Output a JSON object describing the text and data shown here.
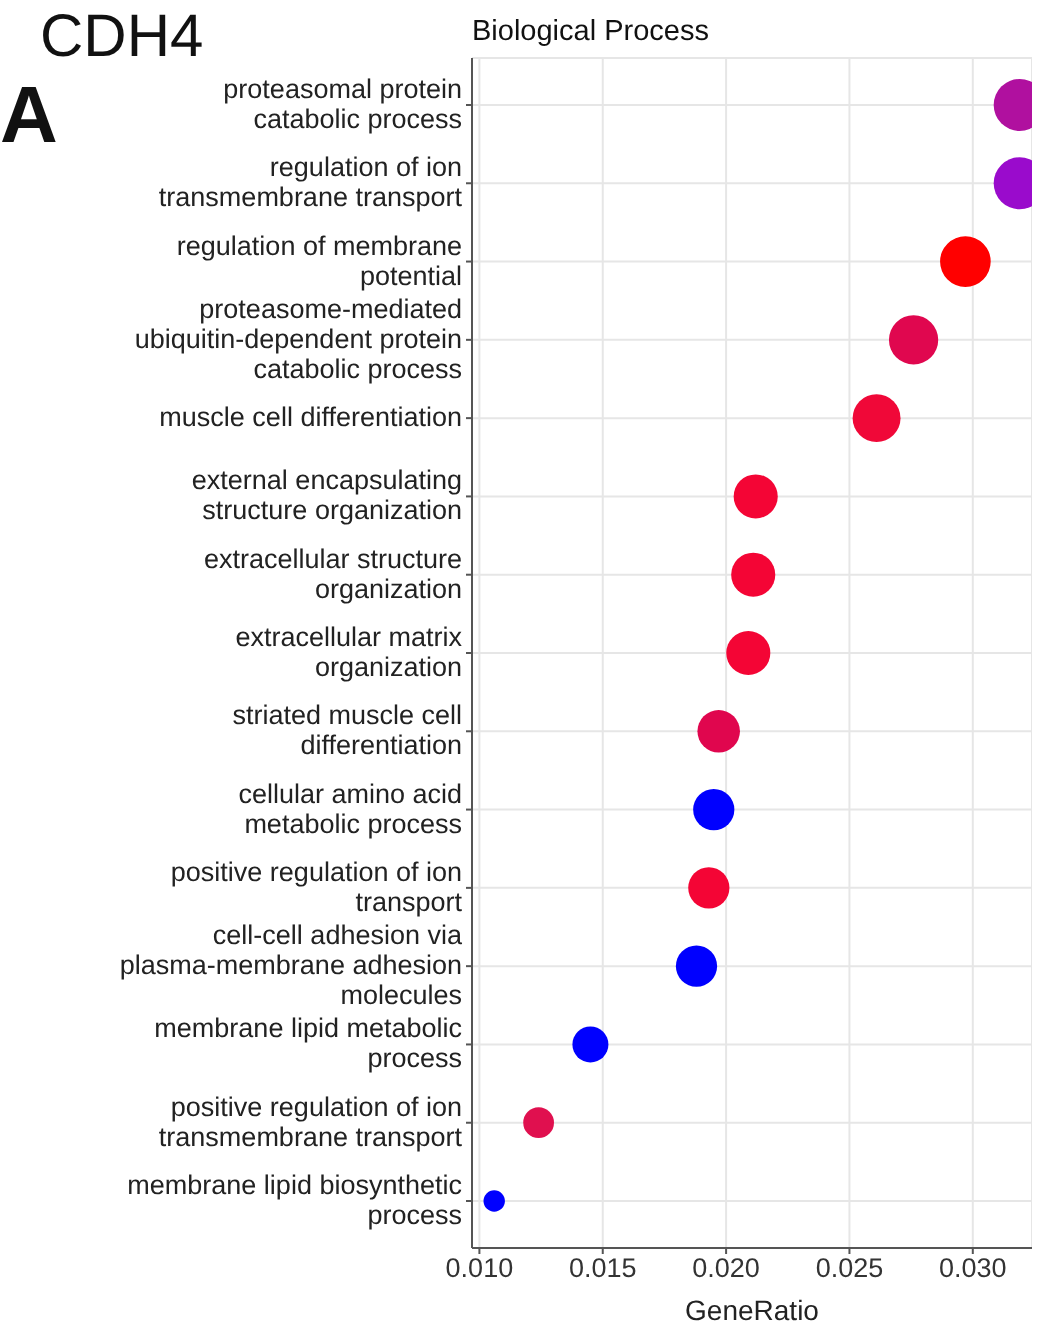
{
  "chart_data": {
    "type": "bubble",
    "orientation": "horizontal",
    "title": "Biological Process",
    "xlabel": "GeneRatio",
    "annotations": [
      "CDH4",
      "A"
    ],
    "categories": [
      "proteasomal protein catabolic process",
      "regulation of ion transmembrane transport",
      "regulation of membrane potential",
      "proteasome-mediated ubiquitin-dependent protein catabolic process",
      "muscle cell differentiation",
      "external encapsulating structure organization",
      "extracellular structure organization",
      "extracellular matrix organization",
      "striated muscle cell differentiation",
      "cellular amino acid metabolic process",
      "positive regulation of ion transport",
      "cell-cell adhesion via plasma-membrane adhesion molecules",
      "membrane lipid metabolic process",
      "positive regulation of ion transmembrane transport",
      "membrane lipid biosynthetic process"
    ],
    "values": [
      0.0319,
      0.0319,
      0.0297,
      0.0276,
      0.0261,
      0.0212,
      0.0211,
      0.0209,
      0.0197,
      0.0195,
      0.0193,
      0.0188,
      0.0145,
      0.0124,
      0.0106
    ],
    "sizes": [
      1,
      1,
      0.95,
      0.9,
      0.85,
      0.72,
      0.72,
      0.72,
      0.67,
      0.63,
      0.63,
      0.63,
      0.48,
      0.35,
      0.17
    ],
    "colors": [
      "#b0109f",
      "#9a0bcc",
      "#ff0000",
      "#e0074f",
      "#f00838",
      "#f40535",
      "#f40535",
      "#f40535",
      "#e0064e",
      "#0000ff",
      "#f40535",
      "#0000ff",
      "#0000ff",
      "#e0104f",
      "#0000ff"
    ],
    "xlim": [
      0.0097,
      0.0324
    ],
    "xticks": [
      {
        "value": 0.01,
        "label": "0.010"
      },
      {
        "value": 0.015,
        "label": "0.015"
      },
      {
        "value": 0.02,
        "label": "0.020"
      },
      {
        "value": 0.025,
        "label": "0.025"
      },
      {
        "value": 0.03,
        "label": "0.030"
      }
    ],
    "grid": true
  }
}
